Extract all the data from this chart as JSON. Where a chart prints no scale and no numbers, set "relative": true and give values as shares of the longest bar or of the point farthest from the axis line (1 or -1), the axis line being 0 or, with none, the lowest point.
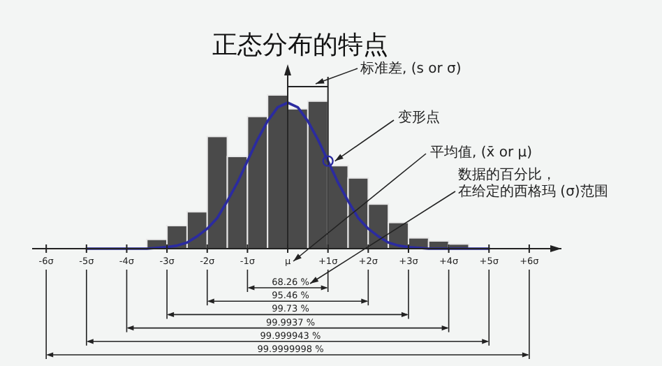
{
  "chart_data": {
    "type": "histogram",
    "title": "正态分布的特点",
    "relative": true,
    "xlim": [
      -6.35,
      6.8
    ],
    "xticks": [
      {
        "value": -6,
        "label": "-6σ"
      },
      {
        "value": -5,
        "label": "-5σ"
      },
      {
        "value": -4,
        "label": "-4σ"
      },
      {
        "value": -3,
        "label": "-3σ"
      },
      {
        "value": -2,
        "label": "-2σ"
      },
      {
        "value": -1,
        "label": "-1σ"
      },
      {
        "value": 0,
        "label": "μ"
      },
      {
        "value": 1,
        "label": "+1σ"
      },
      {
        "value": 2,
        "label": "+2σ"
      },
      {
        "value": 3,
        "label": "+3σ"
      },
      {
        "value": 4,
        "label": "+4σ"
      },
      {
        "value": 5,
        "label": "+5σ"
      },
      {
        "value": 6,
        "label": "+6σ"
      }
    ],
    "series": [
      {
        "type": "histogram",
        "color": "#4a4a4a",
        "bins": [
          -3.5,
          -3,
          -2.5,
          -2,
          -1.5,
          -1,
          -0.5,
          0,
          0.5,
          1,
          1.5,
          2,
          2.5,
          3,
          3.5,
          4,
          4.5
        ],
        "values": [
          0.06,
          0.15,
          0.24,
          0.73,
          0.6,
          0.86,
          1,
          0.91,
          0.96,
          0.54,
          0.46,
          0.29,
          0.17,
          0.07,
          0.05,
          0.03
        ]
      },
      {
        "type": "line",
        "color": "#2b2ba0",
        "x": [
          -5,
          -4,
          -3.5,
          -3,
          -2.75,
          -2.5,
          -2.25,
          -2,
          -1.75,
          -1.5,
          -1.25,
          -1,
          -0.75,
          -0.5,
          -0.25,
          0,
          0.25,
          0.5,
          0.75,
          1,
          1.25,
          1.5,
          1.75,
          2,
          2.25,
          2.5,
          2.75,
          3,
          3.5,
          4,
          5
        ],
        "values": [
          0,
          0,
          0,
          0.01,
          0.02,
          0.04,
          0.08,
          0.13,
          0.2,
          0.31,
          0.43,
          0.57,
          0.71,
          0.83,
          0.92,
          0.95,
          0.92,
          0.83,
          0.71,
          0.57,
          0.43,
          0.31,
          0.2,
          0.13,
          0.08,
          0.04,
          0.02,
          0.01,
          0,
          0,
          0
        ]
      }
    ],
    "annotations": [
      "标准差, (s or σ)",
      {
        "text": "变形点",
        "x": 1,
        "y": 0.57
      },
      "平均值, (x̄ or μ)",
      "数据的百分比，在给定的西格玛 (σ)范围",
      "68.26 %",
      "95.46 %",
      "99.73 %",
      "99.9937 %",
      "99.999943 %",
      "99.9999998 %"
    ]
  }
}
